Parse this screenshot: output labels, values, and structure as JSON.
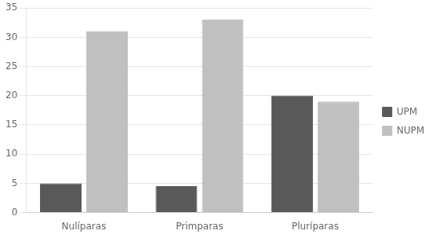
{
  "chart_data": {
    "type": "bar",
    "categories": [
      "Nulíparas",
      "Primparas",
      "Pluríparas"
    ],
    "series": [
      {
        "name": "UPM",
        "values": [
          5,
          4.5,
          20
        ],
        "color": "#595959"
      },
      {
        "name": "NUPM",
        "values": [
          31,
          33,
          19
        ],
        "color": "#c0c0c0"
      }
    ],
    "ylim": [
      0,
      35
    ],
    "yticks": [
      0,
      5,
      10,
      15,
      20,
      25,
      30,
      35
    ],
    "grid": true,
    "legend": "right"
  }
}
